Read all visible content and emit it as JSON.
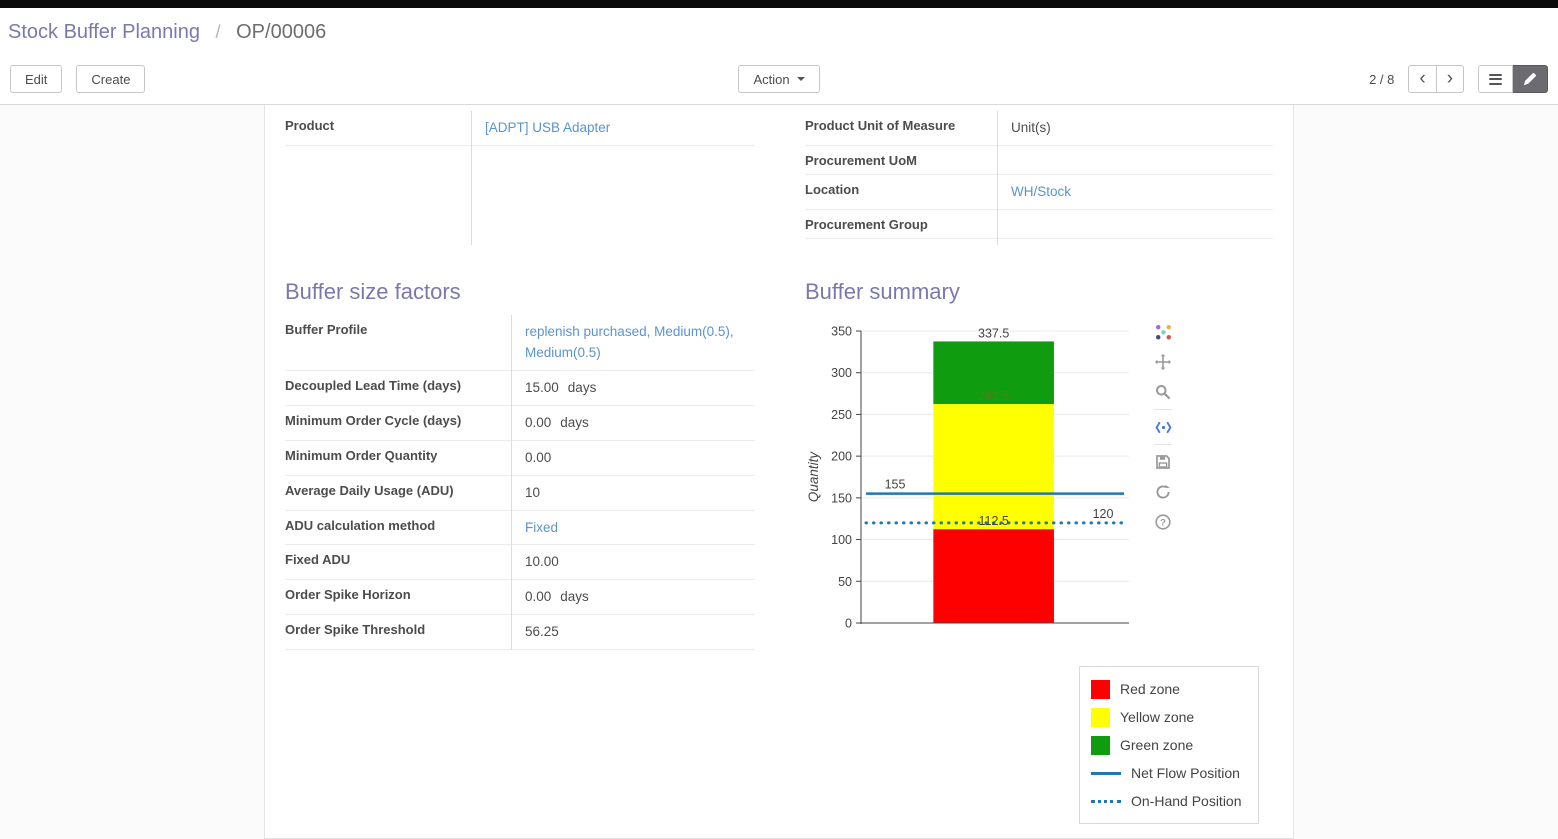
{
  "colors": {
    "heading": "#7b79ac",
    "link": "#5b93cc",
    "label": "#4c4c4c"
  },
  "breadcrumb": {
    "parent": "Stock Buffer Planning",
    "separator": "/",
    "current": "OP/00006"
  },
  "toolbar": {
    "edit_label": "Edit",
    "create_label": "Create",
    "action_label": "Action",
    "pager_text": "2 / 8"
  },
  "icons": {
    "chevron_left": "‹",
    "chevron_right": "›",
    "help_glyph": "?"
  },
  "form": {
    "top_left_fields": [
      {
        "label": "Product",
        "value": "[ADPT] USB Adapter",
        "is_link": true
      }
    ],
    "top_right_fields": [
      {
        "label": "Product Unit of Measure",
        "value": "Unit(s)",
        "is_link": false
      },
      {
        "label": "Procurement UoM",
        "value": "",
        "is_link": false
      },
      {
        "label": "Location",
        "value": "WH/Stock",
        "is_link": true
      },
      {
        "label": "Procurement Group",
        "value": "",
        "is_link": false
      }
    ],
    "buffer_factors": {
      "title": "Buffer size factors",
      "rows": [
        {
          "label": "Buffer Profile",
          "value": "replenish purchased, Medium(0.5), Medium(0.5)",
          "is_link": true
        },
        {
          "label": "Decoupled Lead Time (days)",
          "value": "15.00",
          "suffix": "days"
        },
        {
          "label": "Minimum Order Cycle (days)",
          "value": "0.00",
          "suffix": "days"
        },
        {
          "label": "Minimum Order Quantity",
          "value": "0.00"
        },
        {
          "label": "Average Daily Usage (ADU)",
          "value": "10"
        },
        {
          "label": "ADU calculation method",
          "value": "Fixed",
          "is_link": true
        },
        {
          "label": "Fixed ADU",
          "value": "10.00"
        },
        {
          "label": "Order Spike Horizon",
          "value": "0.00",
          "suffix": "days"
        },
        {
          "label": "Order Spike Threshold",
          "value": "56.25"
        }
      ]
    },
    "buffer_summary_title": "Buffer summary"
  },
  "chart_data": {
    "type": "bar",
    "title": "",
    "xlabel": "",
    "ylabel": "Quantity",
    "ylim": [
      0,
      350
    ],
    "yticks": [
      0,
      50,
      100,
      150,
      200,
      250,
      300,
      350
    ],
    "grid": true,
    "legend_position": "below-right",
    "zones": [
      {
        "name": "Red zone",
        "from": 0,
        "to": 112.5,
        "color": "#ff0000",
        "label": "112.5",
        "label_color": "#444444"
      },
      {
        "name": "Yellow zone",
        "from": 112.5,
        "to": 262.5,
        "color": "#ffff00",
        "label": "262.5",
        "label_color": "#5a7a1e"
      },
      {
        "name": "Green zone",
        "from": 262.5,
        "to": 337.5,
        "color": "#0f9d0f",
        "label": "337.5",
        "label_color": "#444444"
      }
    ],
    "lines": [
      {
        "name": "Net Flow Position",
        "value": 155,
        "label": "155",
        "style": "solid",
        "color": "#1f77b4"
      },
      {
        "name": "On-Hand Position",
        "value": 120,
        "label": "120",
        "style": "dotted",
        "color": "#1f77b4"
      }
    ],
    "legend": [
      {
        "label": "Red zone",
        "swatch": "rect",
        "color": "#ff0000"
      },
      {
        "label": "Yellow zone",
        "swatch": "rect",
        "color": "#ffff00"
      },
      {
        "label": "Green zone",
        "swatch": "rect",
        "color": "#0f9d0f"
      },
      {
        "label": "Net Flow Position",
        "swatch": "line",
        "color": "#1f77b4"
      },
      {
        "label": "On-Hand Position",
        "swatch": "dotted",
        "color": "#1f77b4"
      }
    ],
    "toolbar_icons": [
      "plotly-logo",
      "pan",
      "zoom",
      "autoscale",
      "save",
      "reset-axes",
      "help"
    ]
  }
}
